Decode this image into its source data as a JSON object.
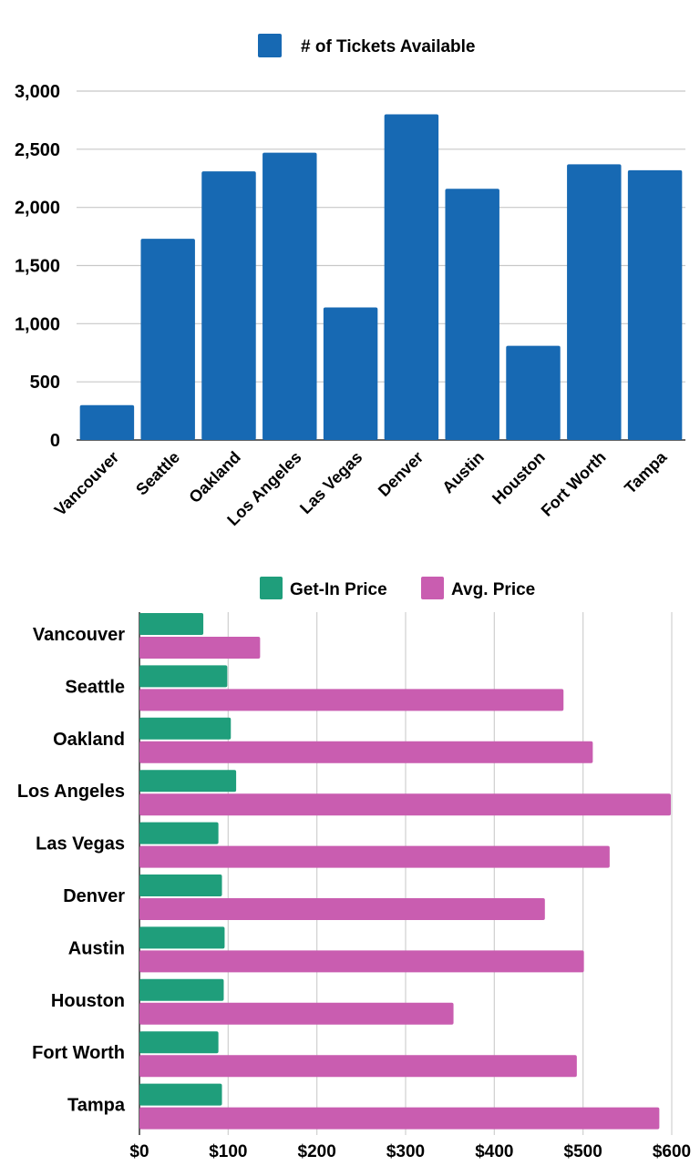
{
  "chart_data": [
    {
      "type": "bar",
      "orientation": "vertical",
      "categories": [
        "Vancouver",
        "Seattle",
        "Oakland",
        "Los Angeles",
        "Las Vegas",
        "Denver",
        "Austin",
        "Houston",
        "Fort Worth",
        "Tampa"
      ],
      "series": [
        {
          "name": "# of Tickets Available",
          "color": "#1769b3",
          "values": [
            300,
            1730,
            2310,
            2470,
            1140,
            2800,
            2160,
            810,
            2370,
            2320
          ]
        }
      ],
      "yticks": [
        "0",
        "500",
        "1,000",
        "1,500",
        "2,000",
        "2,500",
        "3,000"
      ],
      "ylim": [
        0,
        3000
      ],
      "grid": true,
      "legend_position": "top",
      "title": "",
      "xlabel": "",
      "ylabel": ""
    },
    {
      "type": "bar",
      "orientation": "horizontal",
      "categories": [
        "Vancouver",
        "Seattle",
        "Oakland",
        "Los Angeles",
        "Las Vegas",
        "Denver",
        "Austin",
        "Houston",
        "Fort Worth",
        "Tampa"
      ],
      "series": [
        {
          "name": "Get-In Price",
          "color": "#1f9e7b",
          "values": [
            72,
            99,
            103,
            109,
            89,
            93,
            96,
            95,
            89,
            93
          ]
        },
        {
          "name": "Avg. Price",
          "color": "#c95db0",
          "values": [
            136,
            478,
            511,
            599,
            530,
            457,
            501,
            354,
            493,
            586
          ]
        }
      ],
      "xticks": [
        "$0",
        "$100",
        "$200",
        "$300",
        "$400",
        "$500",
        "$600"
      ],
      "xlim": [
        0,
        600
      ],
      "grid": true,
      "legend_position": "top",
      "title": "",
      "xlabel": "",
      "ylabel": ""
    }
  ]
}
